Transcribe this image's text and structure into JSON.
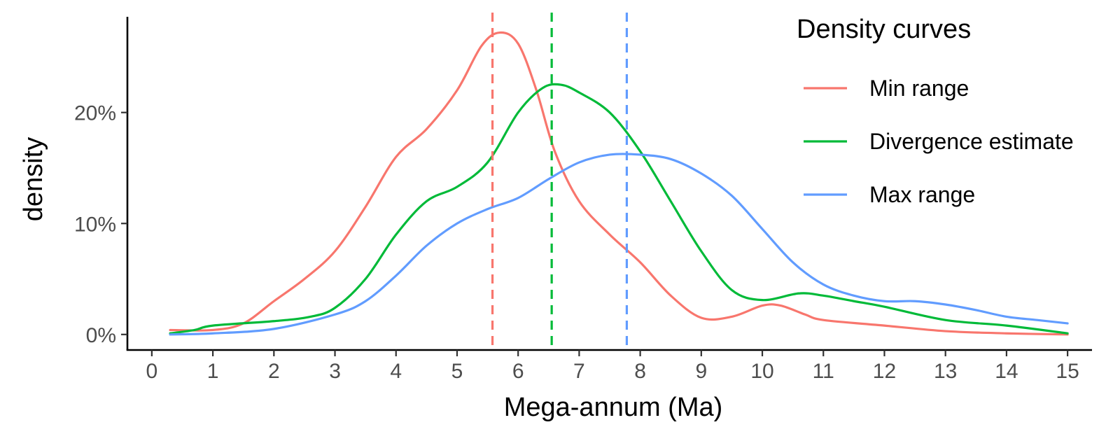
{
  "chart_data": {
    "type": "line",
    "xlabel": "Mega-annum (Ma)",
    "ylabel": "density",
    "xlim": [
      -0.4,
      15.4
    ],
    "ylim": [
      -0.014,
      0.29
    ],
    "x_ticks": [
      0,
      1,
      2,
      3,
      4,
      5,
      6,
      7,
      8,
      9,
      10,
      11,
      12,
      13,
      14,
      15
    ],
    "x_tick_labels": [
      "0",
      "1",
      "2",
      "3",
      "4",
      "5",
      "6",
      "7",
      "8",
      "9",
      "10",
      "11",
      "12",
      "13",
      "14",
      "15"
    ],
    "y_ticks": [
      0,
      0.1,
      0.2
    ],
    "y_tick_labels": [
      "0%",
      "10%",
      "20%"
    ],
    "grid": false,
    "legend": {
      "title": "Density curves",
      "position": "top-right"
    },
    "series": [
      {
        "name": "Min range",
        "color": "#F8766D",
        "vline": 5.58,
        "points": [
          [
            0.3,
            0.004
          ],
          [
            1.0,
            0.004
          ],
          [
            1.5,
            0.01
          ],
          [
            2.0,
            0.03
          ],
          [
            2.5,
            0.05
          ],
          [
            3.0,
            0.075
          ],
          [
            3.5,
            0.115
          ],
          [
            4.0,
            0.16
          ],
          [
            4.5,
            0.185
          ],
          [
            5.0,
            0.22
          ],
          [
            5.4,
            0.26
          ],
          [
            5.7,
            0.272
          ],
          [
            6.0,
            0.262
          ],
          [
            6.3,
            0.22
          ],
          [
            6.6,
            0.165
          ],
          [
            7.0,
            0.12
          ],
          [
            7.5,
            0.09
          ],
          [
            8.0,
            0.065
          ],
          [
            8.5,
            0.035
          ],
          [
            9.0,
            0.015
          ],
          [
            9.5,
            0.016
          ],
          [
            10.0,
            0.026
          ],
          [
            10.3,
            0.026
          ],
          [
            10.7,
            0.018
          ],
          [
            11.0,
            0.013
          ],
          [
            12.0,
            0.008
          ],
          [
            13.0,
            0.003
          ],
          [
            14.0,
            0.001
          ],
          [
            15.0,
            0.0
          ]
        ]
      },
      {
        "name": "Divergence estimate",
        "color": "#00BA38",
        "vline": 6.55,
        "points": [
          [
            0.3,
            0.001
          ],
          [
            0.7,
            0.004
          ],
          [
            1.0,
            0.008
          ],
          [
            2.0,
            0.012
          ],
          [
            2.6,
            0.016
          ],
          [
            3.0,
            0.024
          ],
          [
            3.5,
            0.05
          ],
          [
            4.0,
            0.09
          ],
          [
            4.5,
            0.12
          ],
          [
            5.0,
            0.133
          ],
          [
            5.5,
            0.155
          ],
          [
            6.0,
            0.2
          ],
          [
            6.4,
            0.222
          ],
          [
            6.7,
            0.225
          ],
          [
            7.0,
            0.218
          ],
          [
            7.5,
            0.2
          ],
          [
            8.0,
            0.165
          ],
          [
            8.5,
            0.12
          ],
          [
            9.0,
            0.075
          ],
          [
            9.5,
            0.04
          ],
          [
            10.0,
            0.031
          ],
          [
            10.6,
            0.037
          ],
          [
            11.0,
            0.035
          ],
          [
            11.5,
            0.03
          ],
          [
            12.0,
            0.025
          ],
          [
            13.0,
            0.013
          ],
          [
            14.0,
            0.008
          ],
          [
            15.0,
            0.001
          ]
        ]
      },
      {
        "name": "Max range",
        "color": "#619CFF",
        "vline": 7.78,
        "points": [
          [
            0.3,
            0.0
          ],
          [
            1.0,
            0.001
          ],
          [
            2.0,
            0.005
          ],
          [
            3.0,
            0.018
          ],
          [
            3.5,
            0.03
          ],
          [
            4.0,
            0.053
          ],
          [
            4.5,
            0.08
          ],
          [
            5.0,
            0.1
          ],
          [
            5.5,
            0.113
          ],
          [
            6.0,
            0.123
          ],
          [
            6.5,
            0.14
          ],
          [
            7.0,
            0.155
          ],
          [
            7.5,
            0.162
          ],
          [
            8.0,
            0.162
          ],
          [
            8.5,
            0.158
          ],
          [
            9.0,
            0.145
          ],
          [
            9.5,
            0.125
          ],
          [
            10.0,
            0.095
          ],
          [
            10.5,
            0.065
          ],
          [
            11.0,
            0.045
          ],
          [
            11.5,
            0.035
          ],
          [
            12.0,
            0.03
          ],
          [
            12.5,
            0.03
          ],
          [
            13.0,
            0.027
          ],
          [
            13.5,
            0.022
          ],
          [
            14.0,
            0.016
          ],
          [
            14.5,
            0.013
          ],
          [
            15.0,
            0.01
          ]
        ]
      }
    ]
  }
}
